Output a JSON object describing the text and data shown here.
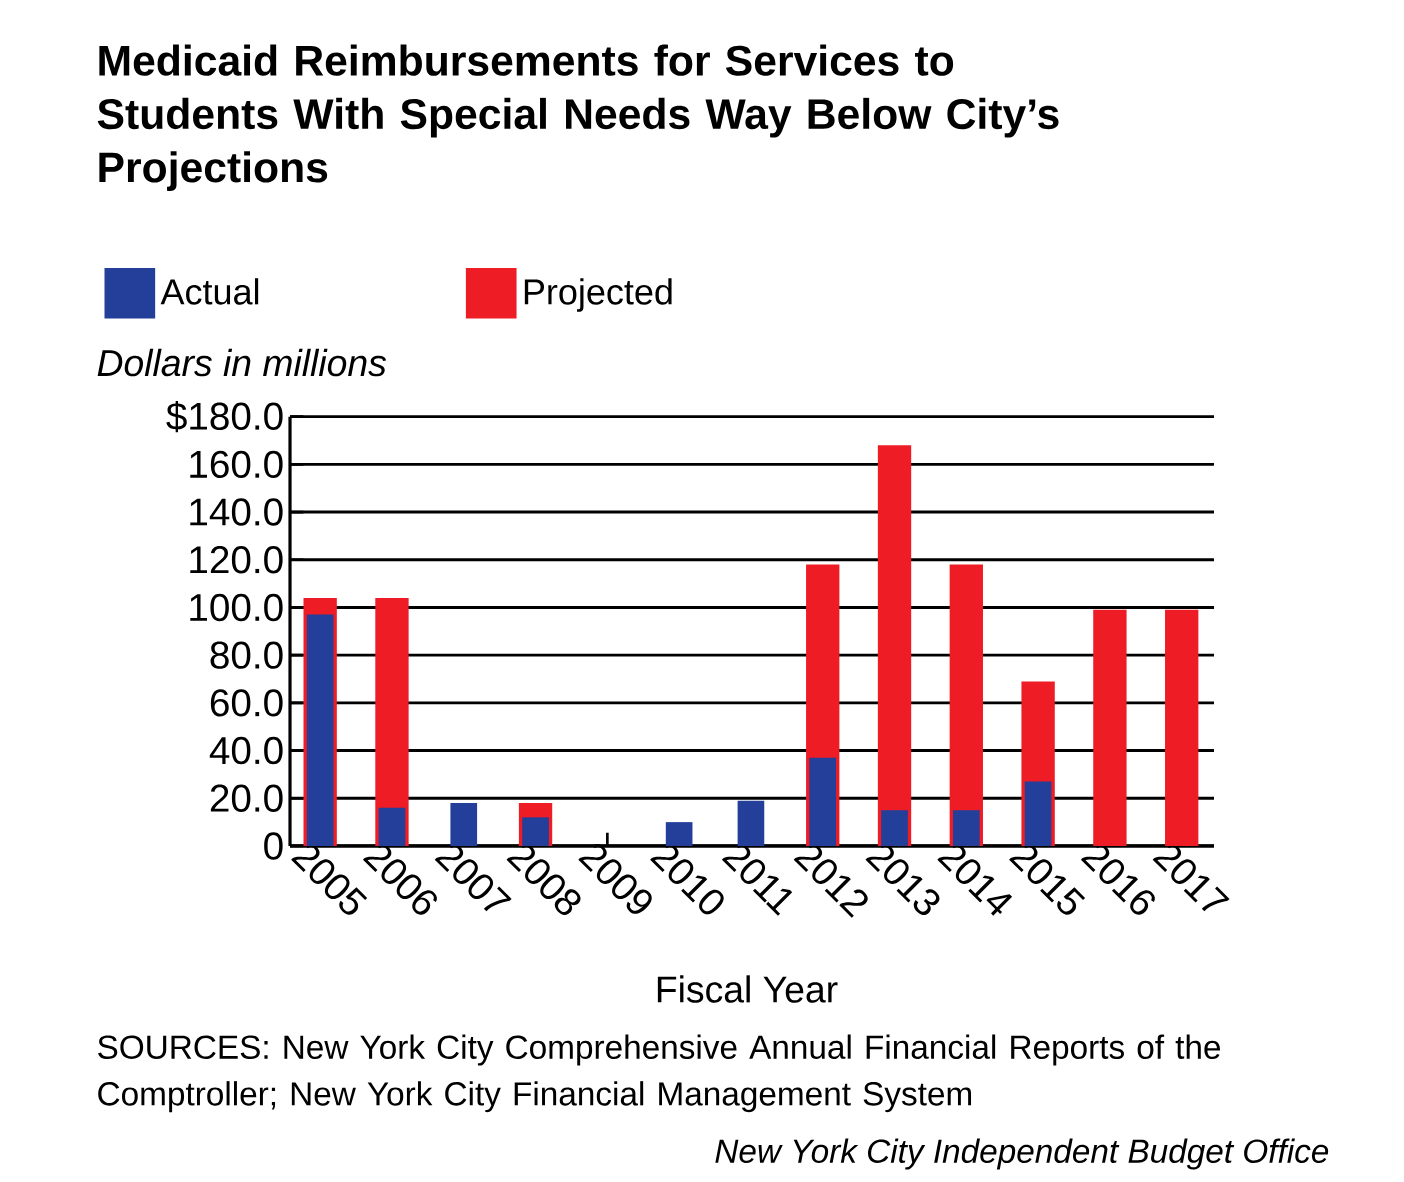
{
  "chart_data": {
    "type": "bar",
    "title": "Medicaid Reimbursements for Services to Students With Special Needs Way Below City’s Projections",
    "ylabel": "Dollars in millions",
    "xlabel": "Fiscal Year",
    "categories": [
      "2005",
      "2006",
      "2007",
      "2008",
      "2009",
      "2010",
      "2011",
      "2012",
      "2013",
      "2014",
      "2015",
      "2016",
      "2017"
    ],
    "series": [
      {
        "name": "Actual",
        "color": "#233f99",
        "values": [
          97,
          16,
          18,
          12,
          null,
          10,
          19,
          37,
          15,
          15,
          27,
          null,
          null
        ]
      },
      {
        "name": "Projected",
        "color": "#ee1c25",
        "values": [
          104,
          104,
          null,
          18,
          null,
          null,
          null,
          118,
          168,
          118,
          69,
          99,
          99
        ]
      }
    ],
    "ylim": [
      0,
      180
    ],
    "yticks": [
      0,
      {
        "value": 20,
        "label": "20.0"
      },
      {
        "value": 40,
        "label": "40.0"
      },
      {
        "value": 60,
        "label": "60.0"
      },
      {
        "value": 80,
        "label": "80.0"
      },
      {
        "value": 100,
        "label": "100.0"
      },
      {
        "value": 120,
        "label": "120.0"
      },
      {
        "value": 140,
        "label": "140.0"
      },
      {
        "value": 160,
        "label": "160.0"
      },
      {
        "value": 180,
        "label": "$180.0"
      }
    ],
    "grid": "y",
    "legend": "top left",
    "annotations": [
      "SOURCES: New York City Comprehensive Annual Financial Reports of the Comptroller; New York City Financial Management System",
      "New York City Independent Budget Office"
    ]
  }
}
